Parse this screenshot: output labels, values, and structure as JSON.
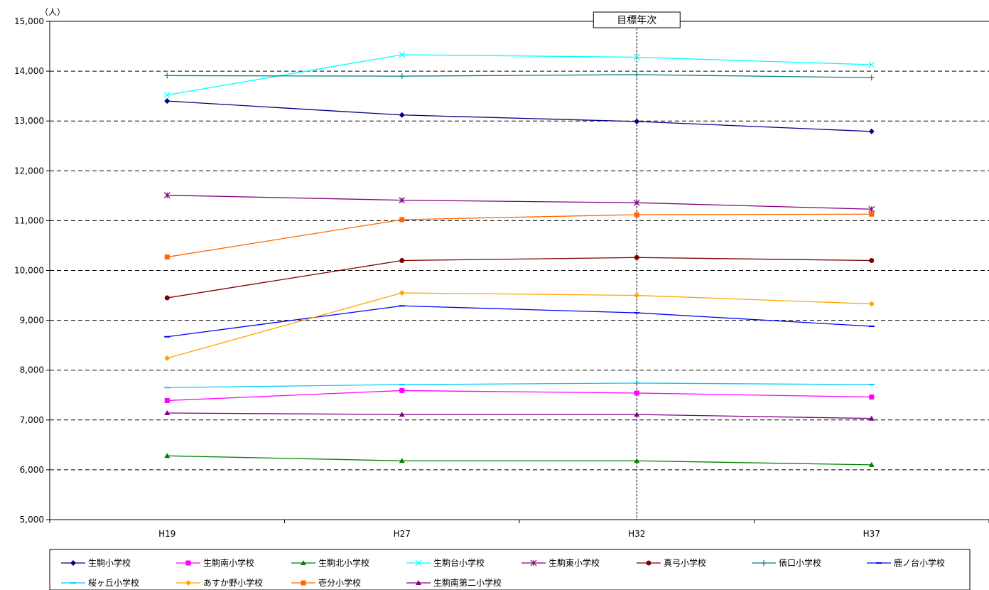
{
  "chart_data": {
    "type": "line",
    "unit_label": "（人）",
    "categories": [
      "H19",
      "H27",
      "H32",
      "H37"
    ],
    "ylim": [
      5000,
      15000
    ],
    "yticks": [
      5000,
      6000,
      7000,
      8000,
      9000,
      10000,
      11000,
      12000,
      13000,
      14000,
      15000
    ],
    "ytick_labels": [
      "5,000",
      "6,000",
      "7,000",
      "8,000",
      "9,000",
      "10,000",
      "11,000",
      "12,000",
      "13,000",
      "14,000",
      "15,000"
    ],
    "grid": "dashed-horizontal",
    "legend_position": "bottom",
    "target_marker": {
      "label": "目標年次",
      "category": "H32"
    },
    "series": [
      {
        "name": "生駒小学校",
        "color": "#000080",
        "marker": "diamond",
        "values": [
          13400,
          13120,
          12990,
          12790
        ]
      },
      {
        "name": "生駒南小学校",
        "color": "#ff00ff",
        "marker": "square",
        "values": [
          7390,
          7590,
          7540,
          7460
        ]
      },
      {
        "name": "生駒北小学校",
        "color": "#008000",
        "marker": "triangle",
        "values": [
          6280,
          6180,
          6180,
          6100
        ]
      },
      {
        "name": "生駒台小学校",
        "color": "#00ffff",
        "marker": "x",
        "values": [
          13520,
          14330,
          14280,
          14130
        ]
      },
      {
        "name": "生駒東小学校",
        "color": "#800080",
        "marker": "star",
        "values": [
          11510,
          11410,
          11360,
          11230
        ]
      },
      {
        "name": "真弓小学校",
        "color": "#800000",
        "marker": "circle",
        "values": [
          9450,
          10200,
          10260,
          10200
        ]
      },
      {
        "name": "俵口小学校",
        "color": "#008080",
        "marker": "plus",
        "values": [
          13910,
          13900,
          13930,
          13870
        ]
      },
      {
        "name": "鹿ノ台小学校",
        "color": "#0000ff",
        "marker": "dash",
        "values": [
          8670,
          9290,
          9150,
          8880
        ]
      },
      {
        "name": "桜ヶ丘小学校",
        "color": "#00ccff",
        "marker": "dash",
        "values": [
          7650,
          7710,
          7740,
          7710
        ]
      },
      {
        "name": "あすか野小学校",
        "color": "#ffa500",
        "marker": "diamond",
        "values": [
          8240,
          9550,
          9500,
          9330
        ]
      },
      {
        "name": "壱分小学校",
        "color": "#ff6600",
        "marker": "square",
        "values": [
          10270,
          11020,
          11120,
          11130
        ]
      },
      {
        "name": "生駒南第二小学校",
        "color": "#800080",
        "marker": "triangle",
        "values": [
          7140,
          7110,
          7110,
          7030
        ]
      }
    ]
  }
}
